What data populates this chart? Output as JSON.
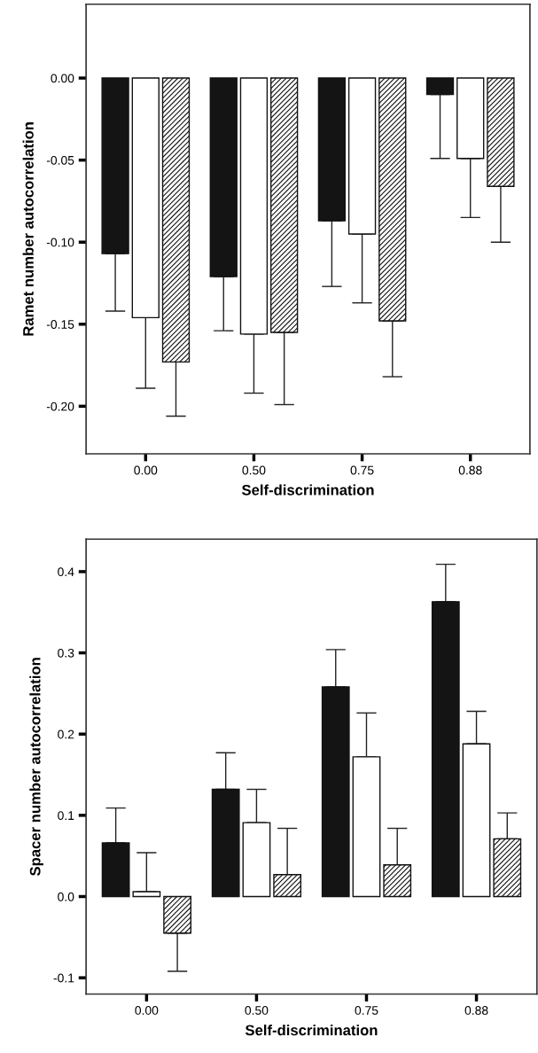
{
  "chart_data": [
    {
      "type": "bar",
      "xlabel": "Self-discrimination",
      "ylabel": "Ramet number autocorrelation",
      "categories": [
        "0.00",
        "0.50",
        "0.75",
        "0.88"
      ],
      "ylim": [
        -0.229,
        0.045
      ],
      "yticks": [
        {
          "value": -0.2,
          "label": "-0.20"
        },
        {
          "value": -0.15,
          "label": "-0.15"
        },
        {
          "value": -0.1,
          "label": "-0.10"
        },
        {
          "value": -0.05,
          "label": "-0.05"
        },
        {
          "value": 0,
          "label": "0.00"
        }
      ],
      "grid": false,
      "legend": false,
      "series": [
        {
          "color": "#141414",
          "values": [
            -0.107,
            -0.121,
            -0.087,
            -0.01
          ],
          "errors": [
            [
              -0.142,
              -0.107
            ],
            [
              -0.154,
              -0.121
            ],
            [
              -0.127,
              -0.087
            ],
            [
              -0.049,
              -0.01
            ]
          ]
        },
        {
          "color": "#ffffff",
          "values": [
            -0.146,
            -0.156,
            -0.095,
            -0.049
          ],
          "errors": [
            [
              -0.189,
              -0.146
            ],
            [
              -0.192,
              -0.156
            ],
            [
              -0.137,
              -0.095
            ],
            [
              -0.085,
              -0.049
            ]
          ]
        },
        {
          "color": "#111111",
          "values": [
            -0.173,
            -0.155,
            -0.148,
            -0.066
          ],
          "errors": [
            [
              -0.206,
              -0.173
            ],
            [
              -0.199,
              -0.155
            ],
            [
              -0.182,
              -0.148
            ],
            [
              -0.1,
              -0.066
            ]
          ]
        }
      ]
    },
    {
      "type": "bar",
      "xlabel": "Self-discrimination",
      "ylabel": "Spacer number autocorrelation",
      "categories": [
        "0.00",
        "0.50",
        "0.75",
        "0.88"
      ],
      "ylim": [
        -0.12,
        0.44
      ],
      "yticks": [
        {
          "value": -0.1,
          "label": "-0.1"
        },
        {
          "value": 0,
          "label": "0.0"
        },
        {
          "value": 0.1,
          "label": "0.1"
        },
        {
          "value": 0.2,
          "label": "0.2"
        },
        {
          "value": 0.3,
          "label": "0.3"
        },
        {
          "value": 0.4,
          "label": "0.4"
        }
      ],
      "grid": false,
      "legend": false,
      "series": [
        {
          "color": "#141414",
          "values": [
            0.066,
            0.132,
            0.258,
            0.363
          ],
          "errors": [
            [
              0.066,
              0.109
            ],
            [
              0.132,
              0.177
            ],
            [
              0.258,
              0.304
            ],
            [
              0.363,
              0.409
            ]
          ]
        },
        {
          "color": "#ffffff",
          "values": [
            0.006,
            0.091,
            0.172,
            0.188
          ],
          "errors": [
            [
              0.006,
              0.054
            ],
            [
              0.091,
              0.132
            ],
            [
              0.172,
              0.226
            ],
            [
              0.188,
              0.228
            ]
          ]
        },
        {
          "color": "#111111",
          "values": [
            -0.045,
            0.027,
            0.039,
            0.071
          ],
          "errors": [
            [
              -0.092,
              -0.045
            ],
            [
              0.027,
              0.084
            ],
            [
              0.039,
              0.084
            ],
            [
              0.071,
              0.103
            ]
          ]
        }
      ]
    }
  ]
}
